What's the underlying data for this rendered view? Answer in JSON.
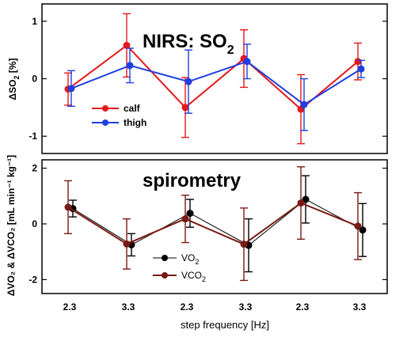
{
  "chart_data": [
    {
      "type": "line",
      "title": "NIRS: SO",
      "title_sub": "2",
      "ylabel_delta": "Δ",
      "ylabel_main": "SO",
      "ylabel_sub": "2",
      "ylabel_unit": " [%]",
      "ylim": [
        -1.3,
        1.3
      ],
      "yticks": [
        "-1",
        "0",
        "1"
      ],
      "categories": [
        "2.3",
        "3.3",
        "2.3",
        "3.3",
        "2.3",
        "3.3"
      ],
      "legend_position": "lower-left",
      "series": [
        {
          "name": "calf",
          "color": "#e31a1c",
          "values": [
            -0.18,
            0.58,
            -0.5,
            0.35,
            -0.53,
            0.3
          ],
          "err": [
            0.28,
            0.55,
            0.52,
            0.5,
            0.6,
            0.32
          ]
        },
        {
          "name": "thigh",
          "color": "#1f3fe0",
          "values": [
            -0.17,
            0.23,
            -0.05,
            0.3,
            -0.45,
            0.17
          ],
          "err": [
            0.31,
            0.3,
            0.55,
            0.3,
            0.45,
            0.15
          ]
        }
      ]
    },
    {
      "type": "line",
      "title": "spirometry",
      "ylabel": "ΔVO₂ & ΔVCO₂ [mL min⁻¹ kg⁻¹]",
      "ylim": [
        -2.5,
        2.3
      ],
      "yticks": [
        "-2",
        "0",
        "2"
      ],
      "categories": [
        "2.3",
        "3.3",
        "2.3",
        "3.3",
        "2.3",
        "3.3"
      ],
      "legend_position": "lower-center",
      "series": [
        {
          "name": "VO",
          "name_sub": "2",
          "color": "#000000",
          "values": [
            0.55,
            -0.75,
            0.38,
            -0.77,
            0.88,
            -0.22
          ],
          "err": [
            0.3,
            0.4,
            0.5,
            0.95,
            0.85,
            0.95
          ]
        },
        {
          "name": "VCO",
          "name_sub": "2",
          "color": "#7a1a14",
          "values": [
            0.6,
            -0.72,
            0.18,
            -0.73,
            0.75,
            -0.08
          ],
          "err": [
            0.95,
            0.9,
            0.85,
            1.3,
            1.3,
            1.2
          ]
        }
      ]
    }
  ],
  "xlabel": "step frequency [Hz]"
}
